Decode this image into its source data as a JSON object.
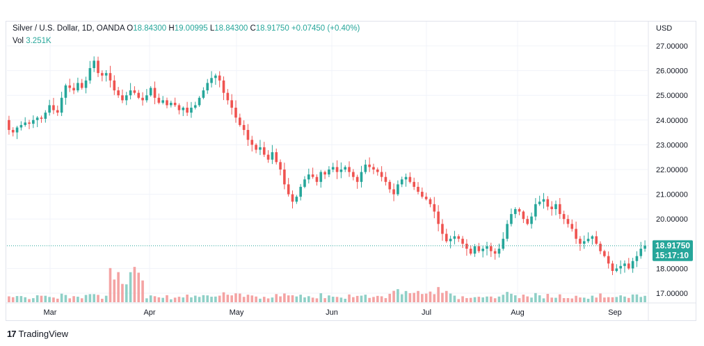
{
  "header": {
    "symbol": "Silver / U.S. Dollar, 1D, OANDA",
    "open_key": "O",
    "open": "18.84300",
    "high_key": "H",
    "high": "19.00995",
    "low_key": "L",
    "low": "18.84300",
    "close_key": "C",
    "close": "18.91750",
    "change": "+0.07450 (+0.40%)",
    "vol_key": "Vol",
    "vol": "3.251K"
  },
  "price_axis": {
    "currency": "USD",
    "ticks": [
      "27.00000",
      "26.00000",
      "25.00000",
      "24.00000",
      "23.00000",
      "22.00000",
      "21.00000",
      "20.00000",
      "18.00000",
      "17.00000"
    ],
    "last_price": "18.91750",
    "countdown": "15:17:10"
  },
  "time_axis": {
    "labels": [
      "Mar",
      "Apr",
      "May",
      "Jun",
      "Jul",
      "Aug",
      "Sep"
    ]
  },
  "branding": {
    "name": "TradingView"
  },
  "colors": {
    "up": "#26a69a",
    "down": "#ef5350",
    "vol_up": "#8fd0c7",
    "vol_down": "#f4a3a3",
    "grid": "#f0f3fa",
    "text": "#131722"
  },
  "chart_data": {
    "type": "candlestick",
    "title": "Silver / U.S. Dollar, 1D, OANDA",
    "ylabel": "USD",
    "ylim": [
      16.7,
      27.6
    ],
    "x_labels": [
      "Mar",
      "Apr",
      "May",
      "Jun",
      "Jul",
      "Aug",
      "Sep"
    ],
    "closes": [
      23.6,
      23.5,
      23.7,
      23.8,
      23.9,
      23.85,
      24.0,
      24.1,
      24.05,
      24.3,
      24.6,
      24.4,
      24.3,
      24.9,
      25.4,
      25.3,
      25.2,
      25.5,
      25.3,
      25.6,
      26.1,
      26.4,
      25.9,
      25.8,
      25.9,
      25.6,
      25.2,
      25.0,
      24.8,
      25.0,
      25.2,
      25.1,
      24.9,
      24.8,
      25.0,
      25.3,
      24.9,
      24.7,
      24.8,
      24.6,
      24.7,
      24.6,
      24.4,
      24.5,
      24.3,
      24.5,
      24.6,
      24.9,
      25.2,
      25.5,
      25.7,
      25.8,
      25.6,
      25.1,
      24.8,
      24.5,
      24.1,
      23.8,
      23.6,
      23.2,
      23.0,
      22.8,
      22.9,
      22.6,
      22.4,
      22.7,
      22.3,
      22.0,
      21.4,
      21.0,
      20.7,
      20.9,
      21.3,
      21.6,
      21.8,
      21.7,
      21.5,
      21.9,
      21.8,
      22.0,
      22.1,
      21.9,
      22.0,
      22.1,
      21.9,
      21.7,
      21.5,
      21.9,
      22.2,
      22.1,
      22.0,
      21.9,
      21.7,
      21.5,
      21.2,
      21.0,
      21.4,
      21.6,
      21.7,
      21.5,
      21.3,
      21.1,
      20.9,
      20.8,
      20.6,
      20.3,
      19.8,
      19.4,
      19.1,
      19.2,
      19.3,
      19.2,
      19.0,
      18.8,
      18.6,
      18.9,
      18.7,
      18.8,
      18.9,
      18.7,
      18.6,
      18.8,
      19.2,
      19.8,
      20.2,
      20.4,
      20.3,
      20.0,
      19.8,
      20.1,
      20.6,
      20.7,
      20.8,
      20.5,
      20.4,
      20.6,
      20.2,
      20.0,
      19.8,
      19.6,
      19.2,
      19.0,
      19.1,
      19.2,
      19.3,
      19.0,
      18.7,
      18.5,
      18.2,
      17.9,
      18.0,
      18.1,
      18.2,
      18.0,
      18.3,
      18.5,
      18.8,
      18.92
    ],
    "volume_max": 3.251
  }
}
